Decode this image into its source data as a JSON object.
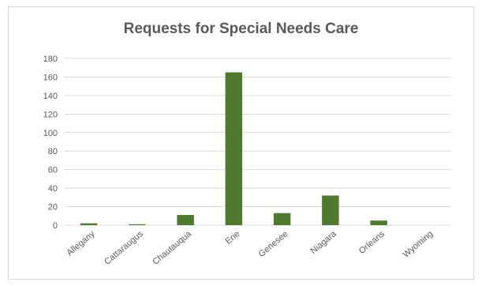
{
  "chart_data": {
    "type": "bar",
    "title": "Requests for Special Needs Care",
    "xlabel": "",
    "ylabel": "",
    "categories": [
      "Allegany",
      "Cattaraugus",
      "Chautauqua",
      "Erie",
      "Genesee",
      "Niagara",
      "Orleans",
      "Wyoming"
    ],
    "values": [
      2,
      1,
      11,
      165,
      13,
      32,
      5,
      0
    ],
    "ylim": [
      0,
      180
    ],
    "yticks": [
      "0",
      "20",
      "40",
      "60",
      "80",
      "100",
      "120",
      "140",
      "160",
      "180"
    ],
    "grid": true,
    "legend": "none",
    "bar_color": "#4e7a2c",
    "grid_color": "#d9d9d9"
  }
}
